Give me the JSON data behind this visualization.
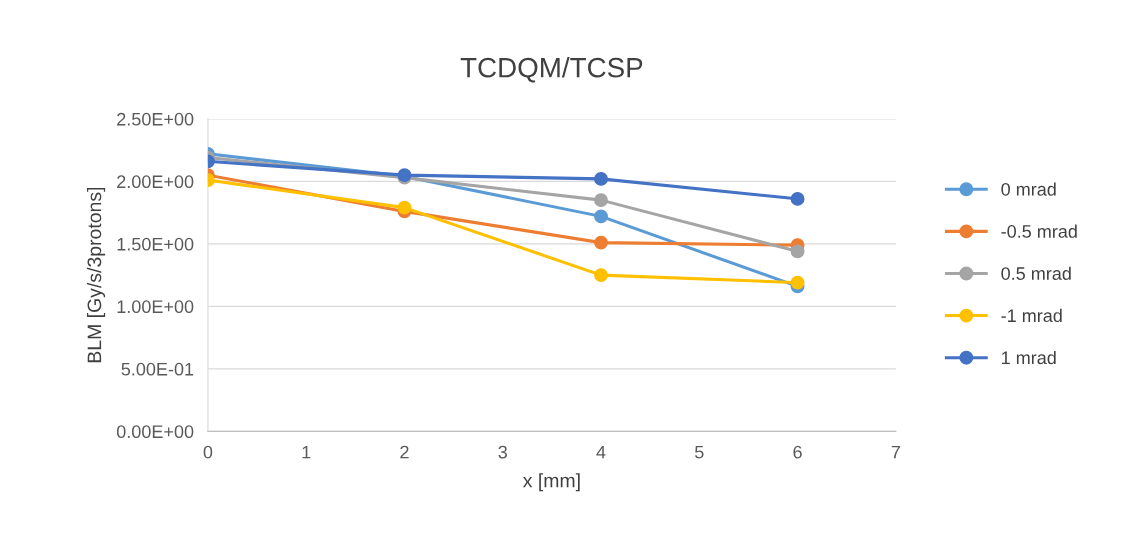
{
  "chart_data": {
    "type": "line",
    "title": "TCDQM/TCSP",
    "xlabel": "x [mm]",
    "ylabel": "BLM [Gy/s/3protons]",
    "x": [
      0,
      2,
      4,
      6
    ],
    "series": [
      {
        "name": "0 mrad",
        "color": "#5b9bd5",
        "values": [
          2.22,
          2.04,
          1.72,
          1.16
        ]
      },
      {
        "name": "-0.5 mrad",
        "color": "#ed7d31",
        "values": [
          2.05,
          1.76,
          1.51,
          1.49
        ]
      },
      {
        "name": "0.5 mrad",
        "color": "#a5a5a5",
        "values": [
          2.19,
          2.03,
          1.85,
          1.44
        ]
      },
      {
        "name": "-1 mrad",
        "color": "#ffc000",
        "values": [
          2.01,
          1.79,
          1.25,
          1.19
        ]
      },
      {
        "name": "1 mrad",
        "color": "#4472c4",
        "values": [
          2.16,
          2.05,
          2.02,
          1.86
        ]
      }
    ],
    "xlim": [
      0,
      7
    ],
    "xticks": [
      0,
      1,
      2,
      3,
      4,
      5,
      6,
      7
    ],
    "ylim": [
      0,
      2.5
    ],
    "yticks": [
      {
        "value": 0,
        "label": "0.00E+00"
      },
      {
        "value": 0.5,
        "label": "5.00E-01"
      },
      {
        "value": 1.0,
        "label": "1.00E+00"
      },
      {
        "value": 1.5,
        "label": "1.50E+00"
      },
      {
        "value": 2.0,
        "label": "2.00E+00"
      },
      {
        "value": 2.5,
        "label": "2.50E+00"
      }
    ],
    "grid": "y",
    "legend": "right",
    "marker": "circle",
    "line_style": "solid"
  }
}
